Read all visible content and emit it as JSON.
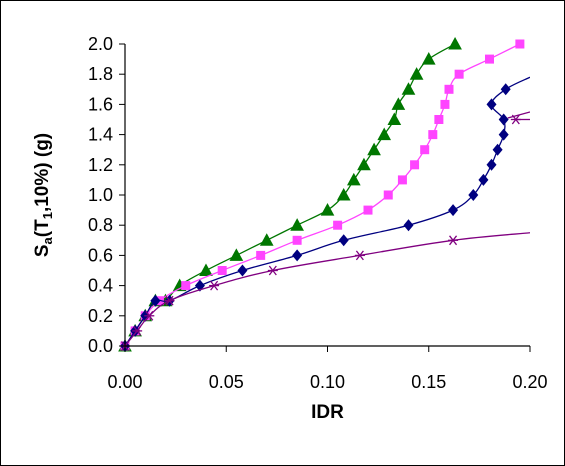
{
  "chart_data": {
    "type": "scatter",
    "xlabel": "IDR",
    "ylabel": {
      "base": "S",
      "sub_a": "a",
      "open": "(T",
      "sub_1": "1",
      "rest": ",10%) (g)"
    },
    "xlim": [
      0,
      0.2
    ],
    "ylim": [
      0,
      2.0
    ],
    "x_ticks": [
      "0.00",
      "0.05",
      "0.10",
      "0.15",
      "0.20"
    ],
    "y_ticks": [
      "0.0",
      "0.2",
      "0.4",
      "0.6",
      "0.8",
      "1.0",
      "1.2",
      "1.4",
      "1.6",
      "1.8",
      "2.0"
    ],
    "grid": false,
    "legend": "none",
    "series": [
      {
        "marker": "triangle",
        "color": "#007700",
        "points": [
          [
            0.0,
            0.0
          ],
          [
            0.005,
            0.1
          ],
          [
            0.01,
            0.2
          ],
          [
            0.015,
            0.3
          ],
          [
            0.02,
            0.3
          ],
          [
            0.027,
            0.4
          ],
          [
            0.04,
            0.5
          ],
          [
            0.055,
            0.6
          ],
          [
            0.07,
            0.7
          ],
          [
            0.085,
            0.8
          ],
          [
            0.1,
            0.9
          ],
          [
            0.108,
            1.0
          ],
          [
            0.113,
            1.1
          ],
          [
            0.118,
            1.2
          ],
          [
            0.123,
            1.3
          ],
          [
            0.128,
            1.4
          ],
          [
            0.133,
            1.5
          ],
          [
            0.135,
            1.6
          ],
          [
            0.14,
            1.7
          ],
          [
            0.144,
            1.8
          ],
          [
            0.15,
            1.9
          ],
          [
            0.163,
            2.0
          ]
        ],
        "tail": []
      },
      {
        "marker": "square",
        "color": "#ff44ff",
        "points": [
          [
            0.0,
            0.0
          ],
          [
            0.005,
            0.1
          ],
          [
            0.01,
            0.2
          ],
          [
            0.017,
            0.3
          ],
          [
            0.03,
            0.4
          ],
          [
            0.048,
            0.5
          ],
          [
            0.067,
            0.6
          ],
          [
            0.085,
            0.7
          ],
          [
            0.105,
            0.8
          ],
          [
            0.12,
            0.9
          ],
          [
            0.13,
            1.0
          ],
          [
            0.137,
            1.1
          ],
          [
            0.143,
            1.2
          ],
          [
            0.148,
            1.3
          ],
          [
            0.152,
            1.4
          ],
          [
            0.155,
            1.5
          ],
          [
            0.158,
            1.6
          ],
          [
            0.16,
            1.7
          ],
          [
            0.165,
            1.8
          ],
          [
            0.18,
            1.9
          ],
          [
            0.195,
            2.0
          ]
        ],
        "tail": []
      },
      {
        "marker": "diamond",
        "color": "#000080",
        "points": [
          [
            0.0,
            0.0
          ],
          [
            0.005,
            0.1
          ],
          [
            0.01,
            0.2
          ],
          [
            0.015,
            0.3
          ],
          [
            0.022,
            0.3
          ],
          [
            0.037,
            0.4
          ],
          [
            0.058,
            0.5
          ],
          [
            0.085,
            0.6
          ],
          [
            0.108,
            0.7
          ],
          [
            0.14,
            0.8
          ],
          [
            0.162,
            0.9
          ],
          [
            0.172,
            1.0
          ],
          [
            0.177,
            1.1
          ],
          [
            0.181,
            1.2
          ],
          [
            0.184,
            1.3
          ],
          [
            0.187,
            1.4
          ],
          [
            0.187,
            1.5
          ],
          [
            0.181,
            1.6
          ],
          [
            0.188,
            1.7
          ]
        ],
        "tail": [
          [
            0.2,
            1.78
          ]
        ]
      },
      {
        "marker": "asterisk",
        "color": "#800080",
        "points": [
          [
            0.0,
            0.0
          ],
          [
            0.006,
            0.1
          ],
          [
            0.012,
            0.2
          ],
          [
            0.022,
            0.3
          ],
          [
            0.044,
            0.4
          ],
          [
            0.073,
            0.5
          ],
          [
            0.116,
            0.6
          ],
          [
            0.162,
            0.7
          ]
        ],
        "tail": [
          [
            0.2,
            0.75
          ]
        ]
      },
      {
        "marker": "asterisk",
        "color": "#800080",
        "points": [
          [
            0.193,
            1.5
          ]
        ],
        "tail": [
          [
            0.2,
            1.5
          ]
        ]
      },
      {
        "marker": "none",
        "color": "#800080",
        "points": [
          [
            0.189,
            1.51
          ]
        ],
        "tail": [
          [
            0.2,
            1.55
          ]
        ]
      }
    ]
  }
}
